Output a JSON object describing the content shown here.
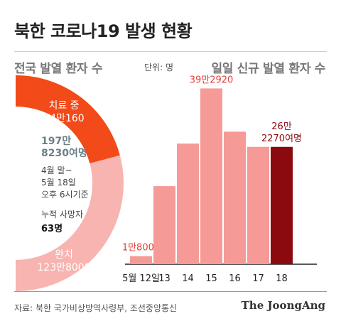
{
  "title": "북한 코로나19 발생 현황",
  "left_section": {
    "title": "전국 발열 환자 수",
    "unit": "단위: 명",
    "treating_label": "치료 중",
    "treating_value": "74만160",
    "recovered_label": "완치",
    "recovered_value": "123만8000",
    "total_line1": "197만",
    "total_line2": "8230여명",
    "note_line1": "4월 말~",
    "note_line2": "5월 18일",
    "note_line3": "오후 6시기준",
    "deaths_label": "누적 사망자",
    "deaths_value": "63명",
    "colors": {
      "treating": "#f24a18",
      "recovered": "#f8b4b0"
    }
  },
  "right_section": {
    "title": "일일 신규 발열 환자 수"
  },
  "chart_data": {
    "type": "bar",
    "categories": [
      "5월 12일",
      "13",
      "14",
      "15",
      "16",
      "17",
      "18"
    ],
    "values": [
      18000,
      174440,
      269510,
      392920,
      296180,
      262270,
      262270
    ],
    "data_labels": [
      "1만8000",
      "",
      "",
      "39만2920",
      "",
      "",
      "26만\n2270여명"
    ],
    "colors": [
      "#f59a96",
      "#f59a96",
      "#f59a96",
      "#f59a96",
      "#f59a96",
      "#f59a96",
      "#8b0a10"
    ],
    "label_colors": [
      "#e0403a",
      "",
      "",
      "#e0403a",
      "",
      "",
      "#8b0a10"
    ],
    "ylim": [
      0,
      400000
    ],
    "grid": false
  },
  "source": "자료: 북한 국가비상방역사령부, 조선중앙통신",
  "brand": "The JoongAng"
}
